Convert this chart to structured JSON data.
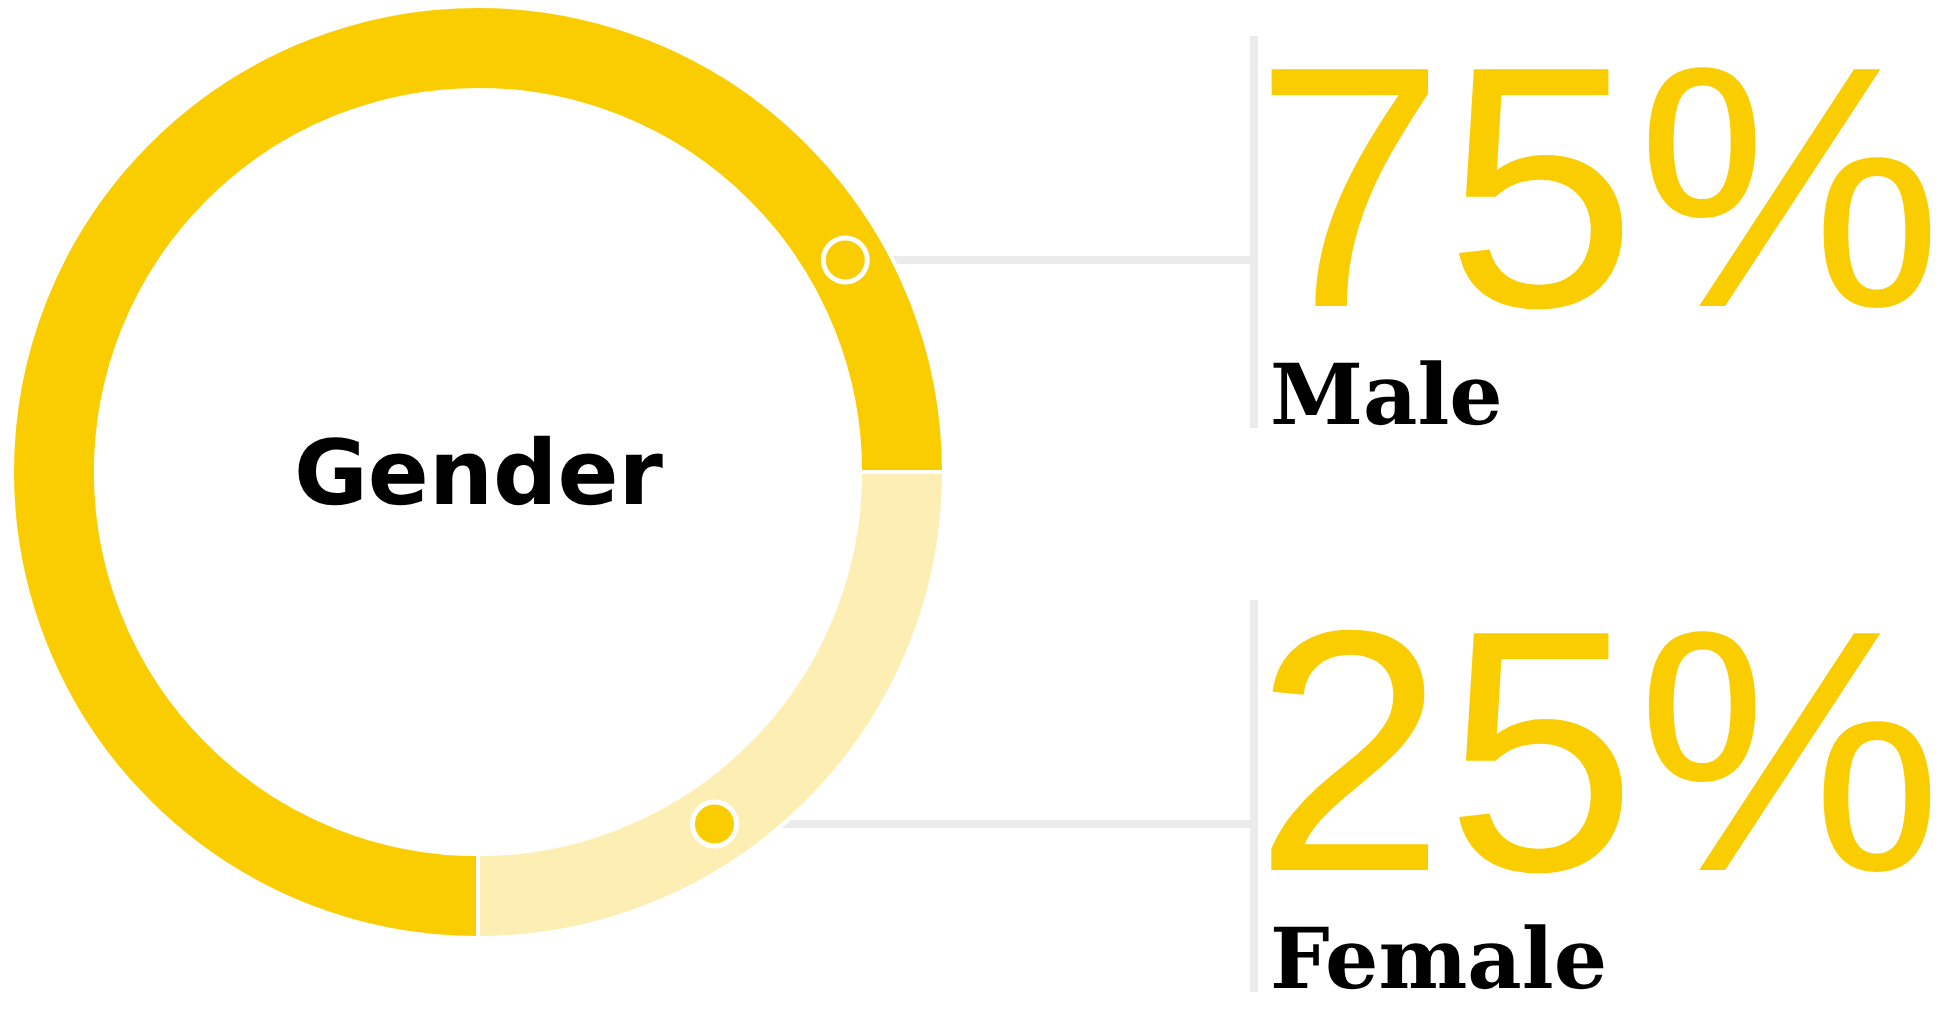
{
  "chart_data": {
    "type": "donut",
    "title": "Gender",
    "categories": [
      "Male",
      "Female"
    ],
    "values": [
      75,
      25
    ],
    "colors": [
      "#facd00",
      "#fdefb4"
    ],
    "value_labels": [
      "75%",
      "25%"
    ]
  }
}
